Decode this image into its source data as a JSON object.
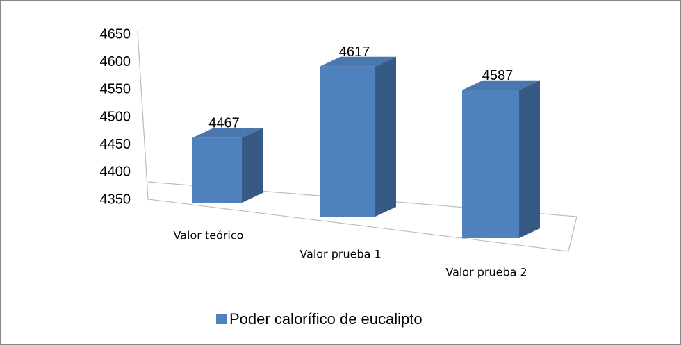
{
  "chart_data": {
    "type": "bar3d",
    "categories": [
      "Valor teórico",
      "Valor prueba 1",
      "Valor prueba 2"
    ],
    "series": [
      {
        "name": "Poder calorífico de eucalipto",
        "color": "#4f81bd",
        "values": [
          4467,
          4617,
          4587
        ]
      }
    ],
    "ylim": [
      4350,
      4650
    ],
    "yticks": [
      4350,
      4400,
      4450,
      4500,
      4550,
      4600,
      4650
    ],
    "legend": "bottom"
  }
}
